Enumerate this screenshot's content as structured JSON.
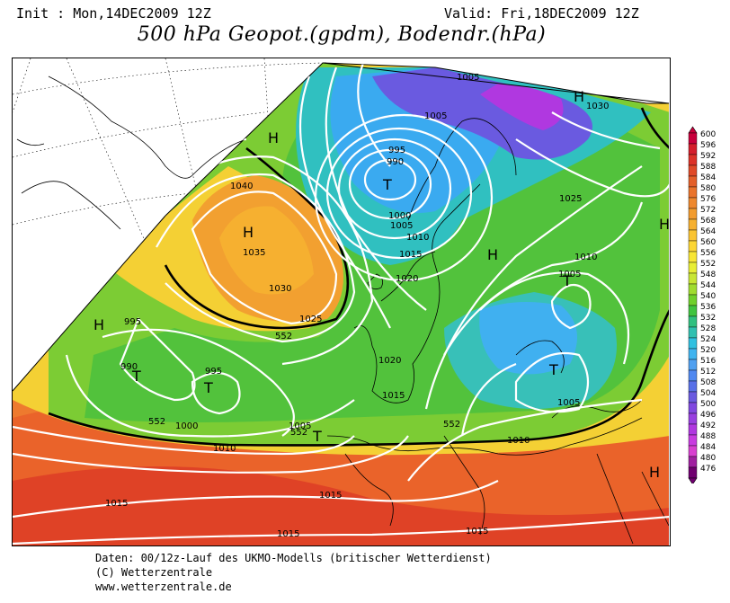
{
  "header": {
    "init": "Init : Mon,14DEC2009 12Z",
    "valid": "Valid: Fri,18DEC2009 12Z",
    "title": "500 hPa Geopot.(gpdm), Bodendr.(hPa)"
  },
  "footer": {
    "line1": "Daten: 00/12z-Lauf des UKMO-Modells (britischer Wetterdienst)",
    "line2": "(C) Wetterzentrale",
    "line3": "www.wetterzentrale.de"
  },
  "colorbar": {
    "levels": [
      "600",
      "596",
      "592",
      "588",
      "584",
      "580",
      "576",
      "572",
      "568",
      "564",
      "560",
      "556",
      "552",
      "548",
      "544",
      "540",
      "536",
      "532",
      "528",
      "524",
      "520",
      "516",
      "512",
      "508",
      "504",
      "500",
      "496",
      "492",
      "488",
      "484",
      "480",
      "476"
    ],
    "colors": [
      "#c8003c",
      "#d41e2c",
      "#dc3228",
      "#e04a28",
      "#e4602a",
      "#ea742c",
      "#ee882e",
      "#f29c2e",
      "#f6b030",
      "#fac432",
      "#fcd634",
      "#f8e634",
      "#e8ee34",
      "#c8e634",
      "#a0dc30",
      "#70d02c",
      "#40c440",
      "#30c080",
      "#30c0b0",
      "#30c0e0",
      "#40b4f0",
      "#50a0f0",
      "#5088f0",
      "#5870e8",
      "#6a5ae0",
      "#8048e0",
      "#9840e0",
      "#b038e0",
      "#c83ce0",
      "#d840d0",
      "#a020a0",
      "#700070"
    ]
  },
  "map": {
    "pressure_labels": [
      "1005",
      "1030",
      "1005",
      "995",
      "990",
      "1040",
      "1025",
      "1000",
      "1005",
      "1010",
      "1010",
      "1035",
      "1015",
      "1005",
      "1030",
      "1020",
      "1025",
      "995",
      "1020",
      "990",
      "995",
      "1015",
      "1005",
      "1000",
      "1005",
      "1010",
      "1010",
      "1015",
      "1015"
    ],
    "contour_labels": [
      "552",
      "552",
      "552",
      "552"
    ],
    "centers": [
      "H",
      "H",
      "T",
      "H",
      "H",
      "T",
      "H",
      "T",
      "T",
      "T",
      "T",
      "H",
      "H",
      "T"
    ]
  }
}
